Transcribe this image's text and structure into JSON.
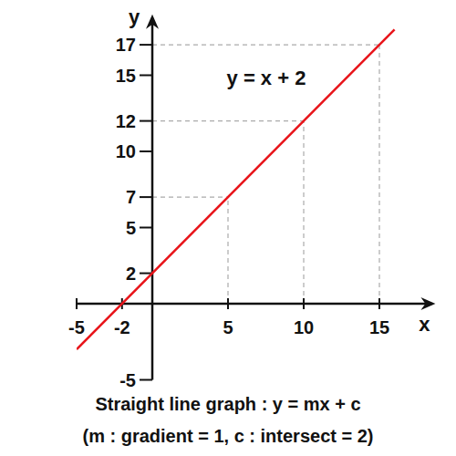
{
  "chart_data": {
    "type": "line",
    "annotation": "y = x + 2",
    "caption": [
      "Straight line graph : y = mx + c",
      "(m : gradient = 1, c : intersect = 2)"
    ],
    "x_label": "x",
    "y_label": "y",
    "series": [
      {
        "name": "y = x + 2",
        "color": "#e8141a",
        "x": [
          -5,
          16
        ],
        "values": [
          -3,
          18
        ]
      }
    ],
    "reference_points": {
      "x": [
        5,
        10,
        15
      ],
      "y": [
        7,
        12,
        17
      ]
    },
    "xlim": [
      -5,
      18.7
    ],
    "ylim": [
      -5,
      19
    ],
    "xticks": [
      -5,
      -2,
      5,
      10,
      15
    ],
    "yticks": [
      -5,
      2,
      5,
      7,
      10,
      12,
      15,
      17
    ],
    "grid": false
  }
}
